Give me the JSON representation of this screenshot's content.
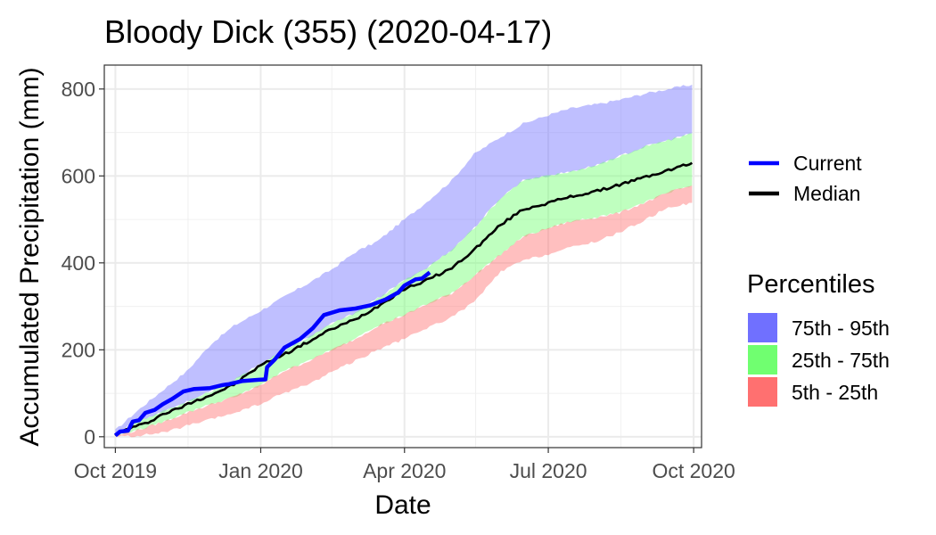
{
  "chart_data": {
    "type": "area",
    "title": "Bloody Dick (355) (2020-04-17)",
    "xlabel": "Date",
    "ylabel": "Accumulated Precipitation (mm)",
    "xlim": [
      "2019-09-24",
      "2020-10-06"
    ],
    "ylim": [
      -25,
      855
    ],
    "x_ticks": [
      {
        "date": "2019-10-01",
        "label": "Oct 2019"
      },
      {
        "date": "2020-01-01",
        "label": "Jan 2020"
      },
      {
        "date": "2020-04-01",
        "label": "Apr 2020"
      },
      {
        "date": "2020-07-01",
        "label": "Jul 2020"
      },
      {
        "date": "2020-10-01",
        "label": "Oct 2020"
      }
    ],
    "y_ticks": [
      0,
      200,
      400,
      600,
      800
    ],
    "grid": true,
    "legend_lines_title": "",
    "legend_bands_title": "Percentiles",
    "legend_position": "right",
    "lines": [
      {
        "name": "Current",
        "color": "#0000ff",
        "points": [
          [
            "2019-10-01",
            3
          ],
          [
            "2019-10-04",
            12
          ],
          [
            "2019-10-09",
            14
          ],
          [
            "2019-10-12",
            35
          ],
          [
            "2019-10-16",
            38
          ],
          [
            "2019-10-20",
            55
          ],
          [
            "2019-10-26",
            62
          ],
          [
            "2019-10-31",
            75
          ],
          [
            "2019-11-06",
            87
          ],
          [
            "2019-11-13",
            104
          ],
          [
            "2019-11-20",
            110
          ],
          [
            "2019-11-30",
            112
          ],
          [
            "2019-12-08",
            119
          ],
          [
            "2019-12-12",
            121
          ],
          [
            "2019-12-20",
            128
          ],
          [
            "2019-12-31",
            131
          ],
          [
            "2020-01-04",
            132
          ],
          [
            "2020-01-05",
            160
          ],
          [
            "2020-01-10",
            178
          ],
          [
            "2020-01-16",
            205
          ],
          [
            "2020-01-26",
            225
          ],
          [
            "2020-02-03",
            250
          ],
          [
            "2020-02-10",
            280
          ],
          [
            "2020-02-20",
            291
          ],
          [
            "2020-03-01",
            295
          ],
          [
            "2020-03-10",
            302
          ],
          [
            "2020-03-20",
            316
          ],
          [
            "2020-03-28",
            332
          ],
          [
            "2020-04-01",
            348
          ],
          [
            "2020-04-08",
            362
          ],
          [
            "2020-04-12",
            364
          ],
          [
            "2020-04-17",
            378
          ]
        ]
      },
      {
        "name": "Median",
        "color": "#000000",
        "points": [
          [
            "2019-10-01",
            5
          ],
          [
            "2019-10-10",
            20
          ],
          [
            "2019-10-20",
            30
          ],
          [
            "2019-10-31",
            52
          ],
          [
            "2019-11-10",
            65
          ],
          [
            "2019-11-20",
            82
          ],
          [
            "2019-12-01",
            97
          ],
          [
            "2019-12-15",
            120
          ],
          [
            "2020-01-01",
            165
          ],
          [
            "2020-01-15",
            188
          ],
          [
            "2020-02-01",
            220
          ],
          [
            "2020-02-15",
            248
          ],
          [
            "2020-03-01",
            270
          ],
          [
            "2020-03-15",
            300
          ],
          [
            "2020-04-01",
            340
          ],
          [
            "2020-04-15",
            360
          ],
          [
            "2020-05-01",
            388
          ],
          [
            "2020-05-15",
            430
          ],
          [
            "2020-06-01",
            488
          ],
          [
            "2020-06-15",
            523
          ],
          [
            "2020-07-01",
            538
          ],
          [
            "2020-07-15",
            552
          ],
          [
            "2020-08-01",
            565
          ],
          [
            "2020-08-15",
            580
          ],
          [
            "2020-09-01",
            598
          ],
          [
            "2020-09-15",
            613
          ],
          [
            "2020-09-30",
            630
          ]
        ]
      }
    ],
    "bands": [
      {
        "name": "75th - 95th",
        "color": "#7070ff",
        "opacity": 0.45,
        "lower": [
          [
            "2019-10-01",
            8
          ],
          [
            "2019-10-15",
            35
          ],
          [
            "2019-11-01",
            60
          ],
          [
            "2019-11-15",
            80
          ],
          [
            "2019-12-01",
            105
          ],
          [
            "2019-12-15",
            130
          ],
          [
            "2020-01-01",
            168
          ],
          [
            "2020-01-15",
            198
          ],
          [
            "2020-02-01",
            230
          ],
          [
            "2020-02-15",
            260
          ],
          [
            "2020-03-01",
            285
          ],
          [
            "2020-03-15",
            318
          ],
          [
            "2020-04-01",
            360
          ],
          [
            "2020-04-15",
            388
          ],
          [
            "2020-05-01",
            430
          ],
          [
            "2020-05-15",
            480
          ],
          [
            "2020-06-01",
            550
          ],
          [
            "2020-06-15",
            590
          ],
          [
            "2020-07-01",
            600
          ],
          [
            "2020-07-15",
            610
          ],
          [
            "2020-08-01",
            625
          ],
          [
            "2020-08-15",
            645
          ],
          [
            "2020-09-01",
            668
          ],
          [
            "2020-09-15",
            682
          ],
          [
            "2020-09-30",
            698
          ]
        ],
        "upper": [
          [
            "2019-10-01",
            15
          ],
          [
            "2019-10-15",
            60
          ],
          [
            "2019-11-01",
            110
          ],
          [
            "2019-11-15",
            150
          ],
          [
            "2019-12-01",
            215
          ],
          [
            "2019-12-15",
            255
          ],
          [
            "2020-01-01",
            290
          ],
          [
            "2020-01-15",
            320
          ],
          [
            "2020-02-01",
            355
          ],
          [
            "2020-02-15",
            385
          ],
          [
            "2020-03-01",
            425
          ],
          [
            "2020-03-15",
            450
          ],
          [
            "2020-04-01",
            500
          ],
          [
            "2020-04-15",
            540
          ],
          [
            "2020-05-01",
            590
          ],
          [
            "2020-05-15",
            650
          ],
          [
            "2020-06-01",
            690
          ],
          [
            "2020-06-15",
            720
          ],
          [
            "2020-07-01",
            740
          ],
          [
            "2020-07-15",
            755
          ],
          [
            "2020-08-01",
            765
          ],
          [
            "2020-08-15",
            775
          ],
          [
            "2020-09-01",
            790
          ],
          [
            "2020-09-15",
            800
          ],
          [
            "2020-09-30",
            810
          ]
        ]
      },
      {
        "name": "25th - 75th",
        "color": "#70ff70",
        "opacity": 0.45,
        "lower": [
          [
            "2019-10-01",
            2
          ],
          [
            "2019-10-15",
            15
          ],
          [
            "2019-11-01",
            35
          ],
          [
            "2019-11-15",
            55
          ],
          [
            "2019-12-01",
            75
          ],
          [
            "2019-12-15",
            92
          ],
          [
            "2020-01-01",
            118
          ],
          [
            "2020-01-15",
            150
          ],
          [
            "2020-02-01",
            175
          ],
          [
            "2020-02-15",
            200
          ],
          [
            "2020-03-01",
            225
          ],
          [
            "2020-03-15",
            255
          ],
          [
            "2020-04-01",
            280
          ],
          [
            "2020-04-15",
            305
          ],
          [
            "2020-05-01",
            330
          ],
          [
            "2020-05-15",
            370
          ],
          [
            "2020-06-01",
            420
          ],
          [
            "2020-06-15",
            460
          ],
          [
            "2020-07-01",
            480
          ],
          [
            "2020-07-15",
            495
          ],
          [
            "2020-08-01",
            505
          ],
          [
            "2020-08-15",
            515
          ],
          [
            "2020-09-01",
            540
          ],
          [
            "2020-09-15",
            562
          ],
          [
            "2020-09-30",
            578
          ]
        ],
        "upper": [
          [
            "2019-10-01",
            8
          ],
          [
            "2019-10-15",
            35
          ],
          [
            "2019-11-01",
            60
          ],
          [
            "2019-11-15",
            80
          ],
          [
            "2019-12-01",
            105
          ],
          [
            "2019-12-15",
            130
          ],
          [
            "2020-01-01",
            168
          ],
          [
            "2020-01-15",
            198
          ],
          [
            "2020-02-01",
            230
          ],
          [
            "2020-02-15",
            260
          ],
          [
            "2020-03-01",
            285
          ],
          [
            "2020-03-15",
            318
          ],
          [
            "2020-04-01",
            360
          ],
          [
            "2020-04-15",
            388
          ],
          [
            "2020-05-01",
            430
          ],
          [
            "2020-05-15",
            480
          ],
          [
            "2020-06-01",
            550
          ],
          [
            "2020-06-15",
            590
          ],
          [
            "2020-07-01",
            600
          ],
          [
            "2020-07-15",
            610
          ],
          [
            "2020-08-01",
            625
          ],
          [
            "2020-08-15",
            645
          ],
          [
            "2020-09-01",
            668
          ],
          [
            "2020-09-15",
            682
          ],
          [
            "2020-09-30",
            698
          ]
        ]
      },
      {
        "name": "5th - 25th",
        "color": "#ff7070",
        "opacity": 0.45,
        "lower": [
          [
            "2019-10-01",
            0
          ],
          [
            "2019-10-15",
            2
          ],
          [
            "2019-11-01",
            10
          ],
          [
            "2019-11-15",
            25
          ],
          [
            "2019-12-01",
            40
          ],
          [
            "2019-12-15",
            55
          ],
          [
            "2020-01-01",
            75
          ],
          [
            "2020-01-15",
            100
          ],
          [
            "2020-02-01",
            122
          ],
          [
            "2020-02-15",
            150
          ],
          [
            "2020-03-01",
            175
          ],
          [
            "2020-03-15",
            200
          ],
          [
            "2020-04-01",
            225
          ],
          [
            "2020-04-15",
            250
          ],
          [
            "2020-05-01",
            275
          ],
          [
            "2020-05-15",
            310
          ],
          [
            "2020-06-01",
            380
          ],
          [
            "2020-06-15",
            405
          ],
          [
            "2020-07-01",
            420
          ],
          [
            "2020-07-15",
            435
          ],
          [
            "2020-08-01",
            450
          ],
          [
            "2020-08-15",
            470
          ],
          [
            "2020-09-01",
            500
          ],
          [
            "2020-09-15",
            528
          ],
          [
            "2020-09-30",
            538
          ]
        ],
        "upper": [
          [
            "2019-10-01",
            2
          ],
          [
            "2019-10-15",
            15
          ],
          [
            "2019-11-01",
            35
          ],
          [
            "2019-11-15",
            55
          ],
          [
            "2019-12-01",
            75
          ],
          [
            "2019-12-15",
            92
          ],
          [
            "2020-01-01",
            118
          ],
          [
            "2020-01-15",
            150
          ],
          [
            "2020-02-01",
            175
          ],
          [
            "2020-02-15",
            200
          ],
          [
            "2020-03-01",
            225
          ],
          [
            "2020-03-15",
            255
          ],
          [
            "2020-04-01",
            280
          ],
          [
            "2020-04-15",
            305
          ],
          [
            "2020-05-01",
            330
          ],
          [
            "2020-05-15",
            370
          ],
          [
            "2020-06-01",
            420
          ],
          [
            "2020-06-15",
            460
          ],
          [
            "2020-07-01",
            480
          ],
          [
            "2020-07-15",
            495
          ],
          [
            "2020-08-01",
            505
          ],
          [
            "2020-08-15",
            515
          ],
          [
            "2020-09-01",
            540
          ],
          [
            "2020-09-15",
            562
          ],
          [
            "2020-09-30",
            578
          ]
        ]
      }
    ]
  }
}
